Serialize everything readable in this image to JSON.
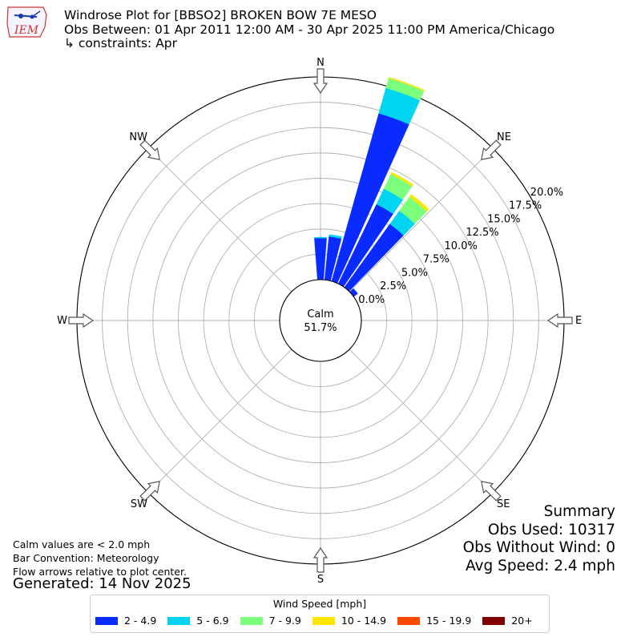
{
  "header": {
    "title_line1": "Windrose Plot for [BBSO2] BROKEN BOW 7E MESO",
    "title_line2": "Obs Between: 01 Apr 2011 12:00 AM - 30 Apr 2025 11:00 PM America/Chicago",
    "title_line3": "↳ constraints: Apr",
    "logo_text": "IEM"
  },
  "notes": {
    "calm_def": "Calm values are < 2.0 mph",
    "bar_convention": "Bar Convention: Meteorology",
    "flow_arrows": "Flow arrows relative to plot center.",
    "generated": "Generated: 14 Nov 2025"
  },
  "summary": {
    "title": "Summary",
    "obs_used": "Obs Used: 10317",
    "obs_without_wind": "Obs Without Wind: 0",
    "avg_speed": "Avg Speed: 2.4 mph"
  },
  "legend": {
    "title": "Wind Speed [mph]",
    "items": [
      {
        "label": "2 - 4.9",
        "color": "#0a2bff"
      },
      {
        "label": "5 - 6.9",
        "color": "#00d4f0"
      },
      {
        "label": "7 - 9.9",
        "color": "#7cff7c"
      },
      {
        "label": "10 - 14.9",
        "color": "#ffe600"
      },
      {
        "label": "15 - 19.9",
        "color": "#ff4a00"
      },
      {
        "label": "20+",
        "color": "#800000"
      }
    ]
  },
  "chart_data": {
    "type": "windrose",
    "calm_label": "Calm",
    "calm_value": "51.7%",
    "compass_labels": [
      "N",
      "NE",
      "E",
      "SE",
      "S",
      "SW",
      "W",
      "NW"
    ],
    "radial_tick_labels": [
      "0.0%",
      "2.5%",
      "5.0%",
      "7.5%",
      "10.0%",
      "12.5%",
      "15.0%",
      "17.5%",
      "20.0%"
    ],
    "radial_max": 20,
    "grid": true,
    "legend_position": "bottom-center",
    "bins": [
      "2 - 4.9",
      "5 - 6.9",
      "7 - 9.9",
      "10 - 14.9",
      "15 - 19.9",
      "20+"
    ],
    "bars": [
      {
        "direction_deg": 0,
        "values": [
          4.1,
          0.1,
          0,
          0,
          0,
          0
        ]
      },
      {
        "direction_deg": 10,
        "values": [
          4.3,
          0.2,
          0,
          0,
          0,
          0
        ]
      },
      {
        "direction_deg": 20,
        "values": [
          17.2,
          2.6,
          1.0,
          0.1,
          0,
          0
        ]
      },
      {
        "direction_deg": 30,
        "values": [
          8.7,
          1.7,
          1.6,
          0.2,
          0,
          0
        ]
      },
      {
        "direction_deg": 40,
        "values": [
          7.7,
          1.6,
          1.7,
          0.3,
          0,
          0
        ]
      },
      {
        "direction_deg": 50,
        "values": [
          0.5,
          0,
          0,
          0,
          0,
          0
        ]
      }
    ]
  }
}
